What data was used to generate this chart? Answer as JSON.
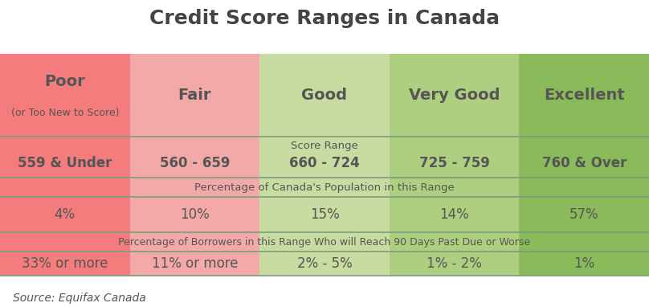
{
  "title": "Credit Score Ranges in Canada",
  "source": "Source: Equifax Canada",
  "columns": [
    "Poor",
    "Fair",
    "Good",
    "Very Good",
    "Excellent"
  ],
  "subtitles": [
    "(or Too New to Score)",
    "",
    "",
    "",
    ""
  ],
  "score_ranges": [
    "559 & Under",
    "560 - 659",
    "660 - 724",
    "725 - 759",
    "760 & Over"
  ],
  "population_pcts": [
    "4%",
    "10%",
    "15%",
    "14%",
    "57%"
  ],
  "borrower_pcts": [
    "33% or more",
    "11% or more",
    "2% - 5%",
    "1% - 2%",
    "1%"
  ],
  "col_colors": [
    "#f47c7c",
    "#f4a9a9",
    "#c8dba0",
    "#aecf80",
    "#8aba5a"
  ],
  "divider_color": "#7a9e7a",
  "label_score_range": "Score Range",
  "label_population": "Percentage of Canada's Population in this Range",
  "label_borrowers": "Percentage of Borrowers in this Range Who will Reach 90 Days Past Due or Worse",
  "title_fontsize": 18,
  "header_fontsize": 14,
  "body_fontsize": 12,
  "label_fontsize": 9.5,
  "source_fontsize": 10,
  "text_color": "#555555"
}
